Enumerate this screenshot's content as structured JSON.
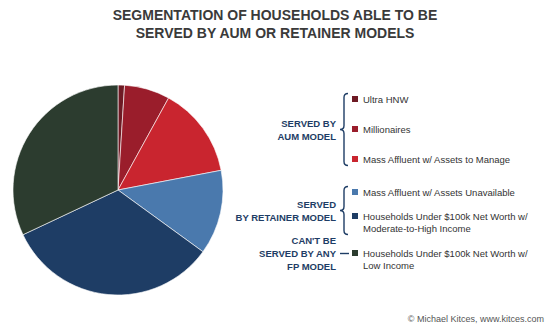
{
  "chart_data": {
    "type": "pie",
    "title": [
      "SEGMENTATION OF HOUSEHOLDS ABLE TO BE",
      "SERVED BY AUM OR RETAINER MODELS"
    ],
    "categories": [
      "Ultra HNW",
      "Millionaires",
      "Mass Affluent w/ Assets to Manage",
      "Mass Affluent w/ Assets Unavailable",
      "Households Under $100k Net Worth w/ Moderate-to-High Income",
      "Households Under $100k Net Worth w/ Low Income"
    ],
    "values": [
      1,
      7,
      14,
      13,
      33,
      32
    ],
    "colors": [
      "#6e1a24",
      "#9a1d2b",
      "#c9252f",
      "#4a79ad",
      "#1e3d65",
      "#2c3c2f"
    ],
    "groups": [
      {
        "label": [
          "SERVED BY",
          "AUM MODEL"
        ],
        "members": [
          "Ultra HNW",
          "Millionaires",
          "Mass Affluent w/ Assets to Manage"
        ]
      },
      {
        "label": [
          "SERVED",
          "BY RETAINER MODEL"
        ],
        "members": [
          "Mass Affluent w/ Assets Unavailable",
          "Households Under $100k Net Worth w/ Moderate-to-High Income"
        ]
      },
      {
        "label": [
          "CAN'T BE",
          "SERVED BY ANY",
          "FP MODEL"
        ],
        "members": [
          "Households Under $100k Net Worth w/ Low Income"
        ]
      }
    ],
    "source": "© Michael Kitces, www.kitces.com"
  }
}
